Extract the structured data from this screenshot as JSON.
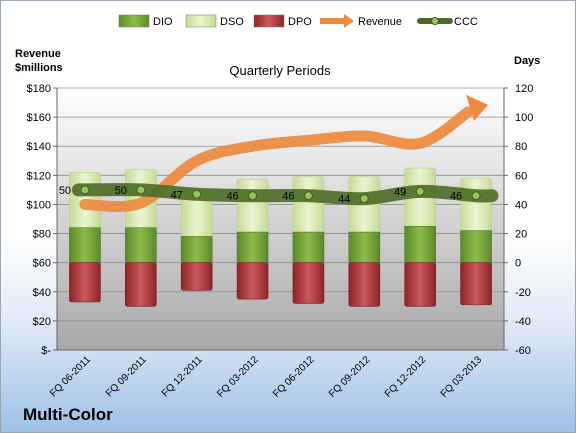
{
  "chart_data": {
    "type": "bar",
    "title": "Quarterly Periods",
    "categories": [
      "FQ 06-2011",
      "FQ 09-2011",
      "FQ 12-2011",
      "FQ 03-2012",
      "FQ 06-2012",
      "FQ 09-2012",
      "FQ 12-2012",
      "FQ 03-2013"
    ],
    "y_left_label": [
      "Revenue",
      "$millions"
    ],
    "y_right_label": "Days",
    "y_left_range": [
      0,
      180
    ],
    "y_right_range": [
      -60,
      120
    ],
    "y_left_ticks": [
      "$-",
      "$20",
      "$40",
      "$60",
      "$80",
      "$100",
      "$120",
      "$140",
      "$160",
      "$180"
    ],
    "y_left_tick_values": [
      0,
      20,
      40,
      60,
      80,
      100,
      120,
      140,
      160,
      180
    ],
    "y_right_ticks": [
      "-60",
      "-40",
      "-20",
      "0",
      "20",
      "40",
      "60",
      "80",
      "100",
      "120"
    ],
    "y_right_tick_values": [
      -60,
      -40,
      -20,
      0,
      20,
      40,
      60,
      80,
      100,
      120
    ],
    "series": [
      {
        "name": "DIO",
        "axis": "right",
        "color": "#76a03a",
        "values": [
          24,
          24,
          18,
          21,
          21,
          21,
          25,
          22
        ]
      },
      {
        "name": "DSO",
        "axis": "right",
        "color": "#d7e8b0",
        "values": [
          38,
          40,
          32,
          36,
          38,
          38,
          40,
          36
        ]
      },
      {
        "name": "DPO",
        "axis": "right",
        "color": "#b0383c",
        "values": [
          -27,
          -30,
          -19,
          -25,
          -28,
          -30,
          -30,
          -29
        ]
      },
      {
        "name": "Revenue",
        "axis": "left",
        "color": "#ed8a3f",
        "values": [
          100,
          101,
          130,
          140,
          144,
          147,
          142,
          167
        ]
      },
      {
        "name": "CCC",
        "axis": "right",
        "color": "#4e7a2c",
        "values": [
          50,
          50,
          47,
          46,
          46,
          44,
          49,
          46
        ]
      }
    ],
    "data_labels": [
      "50",
      "50",
      "47",
      "46",
      "46",
      "44",
      "49",
      "46"
    ],
    "legend_position": "top",
    "grid": true
  },
  "footer": {
    "company": "Multi-Color"
  }
}
